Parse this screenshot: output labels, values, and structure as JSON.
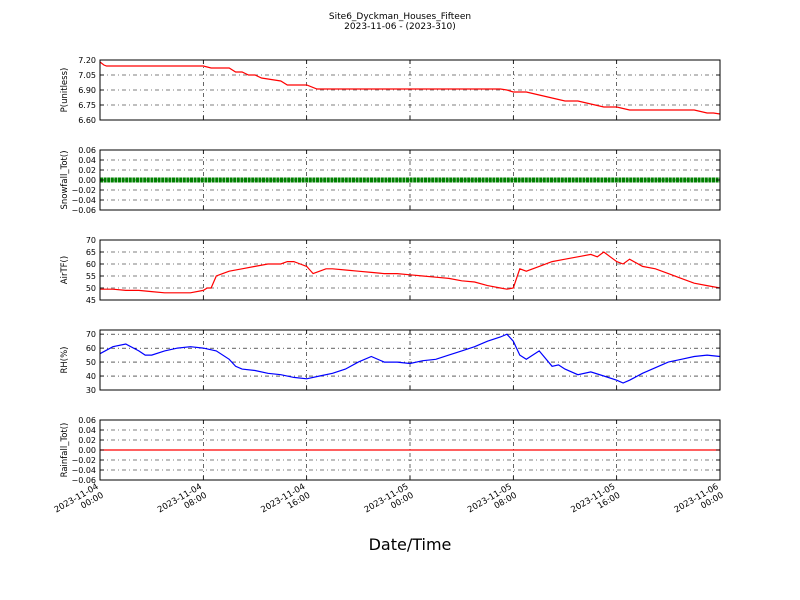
{
  "chart_data": {
    "type": "line",
    "title": "Site6_Dyckman_Houses_Fifteen",
    "subtitle": "2023-11-06 - (2023-310)",
    "xlabel": "Date/Time",
    "x_ticks": [
      [
        "2023-11-04",
        "00:00"
      ],
      [
        "2023-11-04",
        "08:00"
      ],
      [
        "2023-11-04",
        "16:00"
      ],
      [
        "2023-11-05",
        "00:00"
      ],
      [
        "2023-11-05",
        "08:00"
      ],
      [
        "2023-11-05",
        "16:00"
      ],
      [
        "2023-11-06",
        "00:00"
      ]
    ],
    "x_range_hours": [
      0,
      48
    ],
    "grid": true,
    "panels": [
      {
        "ylabel": "P(unitless)",
        "ylim": [
          6.6,
          7.2
        ],
        "yticks": [
          "7.20",
          "7.05",
          "6.90",
          "6.75",
          "6.60"
        ],
        "series": [
          {
            "color": "#ff0000",
            "x": [
              0,
              0.3,
              0.5,
              2,
              4,
              6,
              7.9,
              8,
              8.6,
              10,
              10.5,
              11,
              11.5,
              12,
              12.5,
              14,
              14.5,
              16,
              16.8,
              20,
              24,
              28,
              31,
              31.5,
              32,
              33,
              34,
              35,
              36,
              37,
              38,
              39,
              40,
              41,
              42,
              43,
              44,
              45,
              46,
              47,
              47.5,
              48
            ],
            "values": [
              7.18,
              7.15,
              7.14,
              7.14,
              7.14,
              7.14,
              7.14,
              7.14,
              7.12,
              7.12,
              7.08,
              7.08,
              7.05,
              7.05,
              7.02,
              6.99,
              6.95,
              6.95,
              6.91,
              6.91,
              6.91,
              6.91,
              6.91,
              6.9,
              6.88,
              6.88,
              6.85,
              6.82,
              6.79,
              6.79,
              6.76,
              6.73,
              6.73,
              6.7,
              6.7,
              6.7,
              6.7,
              6.7,
              6.7,
              6.67,
              6.67,
              6.66
            ]
          }
        ]
      },
      {
        "ylabel": "Snowfall_Tot()",
        "ylim": [
          -0.06,
          0.06
        ],
        "yticks": [
          "0.06",
          "0.04",
          "0.02",
          "0.00",
          "−0.02",
          "−0.04",
          "−0.06"
        ],
        "series": [
          {
            "color": "#008000",
            "style": "markers",
            "x": [
              0,
              48
            ],
            "values": [
              0,
              0
            ]
          }
        ]
      },
      {
        "ylabel": "AirTF()",
        "ylim": [
          45,
          70
        ],
        "yticks": [
          "70",
          "65",
          "60",
          "55",
          "50",
          "45"
        ],
        "series": [
          {
            "color": "#ff0000",
            "x": [
              0,
              1,
              2,
              3,
              4,
              5,
              6,
              7,
              8,
              8.3,
              8.6,
              9,
              9.5,
              10,
              11,
              12,
              13,
              14,
              14.5,
              15,
              15.5,
              16,
              16.5,
              17,
              17.5,
              18,
              19,
              20,
              21,
              22,
              23,
              24,
              25,
              26,
              27,
              28,
              29,
              30,
              31,
              31.5,
              32,
              32.5,
              33,
              34,
              35,
              36,
              37,
              38,
              38.5,
              39,
              39.5,
              40,
              40.5,
              41,
              42,
              43,
              44,
              45,
              46,
              47,
              48
            ],
            "values": [
              49.5,
              49.5,
              49,
              49,
              48.5,
              48,
              48,
              48,
              49,
              50,
              50,
              55,
              56,
              57,
              58,
              59,
              60,
              60,
              61,
              61,
              60,
              59,
              56,
              57,
              58,
              58,
              57.5,
              57,
              56.5,
              56,
              56,
              55.5,
              55,
              54.5,
              54,
              53,
              52.5,
              51,
              50,
              49.5,
              50,
              58,
              57,
              59,
              61,
              62,
              63,
              64,
              63,
              65,
              63,
              61,
              60,
              62,
              59,
              58,
              56,
              54,
              52,
              51,
              50
            ]
          }
        ]
      },
      {
        "ylabel": "RH(%)",
        "ylim": [
          30,
          73
        ],
        "yticks": [
          "70",
          "60",
          "50",
          "40",
          "30"
        ],
        "series": [
          {
            "color": "#0000ff",
            "x": [
              0,
              1,
              2,
              3,
              3.5,
              4,
              5,
              6,
              7,
              8,
              9,
              10,
              10.5,
              11,
              12,
              13,
              14,
              15,
              16,
              17,
              18,
              19,
              20,
              21,
              22,
              23,
              24,
              25,
              26,
              27,
              28,
              29,
              30,
              31,
              31.5,
              32,
              32.5,
              33,
              34,
              35,
              35.5,
              36,
              37,
              38,
              39,
              40,
              40.5,
              41,
              42,
              43,
              44,
              45,
              46,
              47,
              48
            ],
            "values": [
              56,
              61,
              63,
              58,
              55,
              55,
              58,
              60,
              61,
              60,
              58,
              52,
              47,
              45,
              44,
              42,
              41,
              39,
              38,
              40,
              42,
              45,
              50,
              54,
              50,
              50,
              49,
              51,
              52,
              55,
              58,
              61,
              65,
              68,
              70,
              65,
              55,
              52,
              58,
              47,
              48,
              45,
              41,
              43,
              40,
              37,
              35,
              37,
              42,
              46,
              50,
              52,
              54,
              55,
              54
            ]
          }
        ]
      },
      {
        "ylabel": "Rainfall_Tot()",
        "ylim": [
          -0.06,
          0.06
        ],
        "yticks": [
          "0.06",
          "0.04",
          "0.02",
          "0.00",
          "−0.02",
          "−0.04",
          "−0.06"
        ],
        "series": [
          {
            "color": "#ff0000",
            "x": [
              0,
              48
            ],
            "values": [
              0,
              0
            ]
          }
        ]
      }
    ]
  }
}
